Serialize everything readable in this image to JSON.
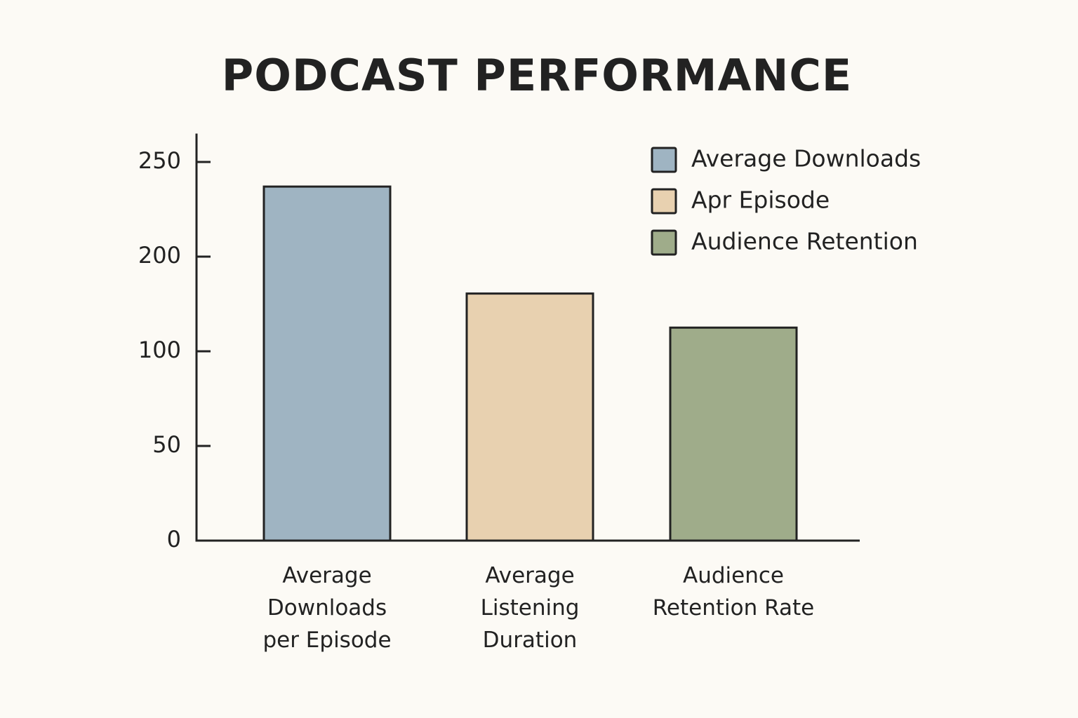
{
  "chart_data": {
    "type": "bar",
    "title": "PODCAST PERFORMANCE",
    "categories": [
      "Average Downloads per Episode",
      "Average Listening Duration",
      "Audience Retention Rate"
    ],
    "values": [
      237,
      161,
      125
    ],
    "colors": [
      "#9fb4c2",
      "#e8d1b0",
      "#9fac8a"
    ],
    "ylim": [
      0,
      265
    ],
    "yticks": [
      0,
      50,
      100,
      200,
      250
    ],
    "grid": false,
    "legend": {
      "position": "upper right",
      "entries": [
        {
          "label": "Average Downloads",
          "color": "#9fb4c2"
        },
        {
          "label": "Apr Episode",
          "color": "#e8d1b0"
        },
        {
          "label": "Audience Retention",
          "color": "#9fac8a"
        }
      ]
    }
  }
}
